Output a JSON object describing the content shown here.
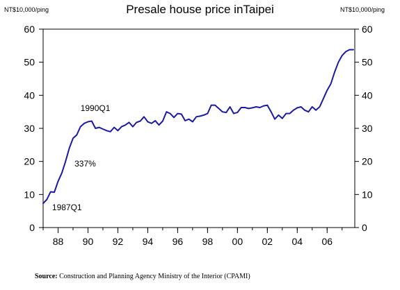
{
  "chart_data": {
    "type": "line",
    "title": "Presale house price inTaipei",
    "unit_left": "NT$10,000/ping",
    "unit_right": "NT$10,000/ping",
    "xlabel": "",
    "ylabel": "",
    "xlim": [
      1987.0,
      2007.85
    ],
    "ylim": [
      0,
      60
    ],
    "y_ticks": [
      0,
      10,
      20,
      30,
      40,
      50,
      60
    ],
    "x_ticks": [
      {
        "value": 1988.0,
        "label": "88"
      },
      {
        "value": 1990.0,
        "label": "90"
      },
      {
        "value": 1992.0,
        "label": "92"
      },
      {
        "value": 1994.0,
        "label": "94"
      },
      {
        "value": 1996.0,
        "label": "96"
      },
      {
        "value": 1998.0,
        "label": "98"
      },
      {
        "value": 2000.0,
        "label": "00"
      },
      {
        "value": 2002.0,
        "label": "02"
      },
      {
        "value": 2004.0,
        "label": "04"
      },
      {
        "value": 2006.0,
        "label": "06"
      }
    ],
    "grid": false,
    "line_color": "#1a1aa6",
    "series": [
      {
        "x": [
          1987.0,
          1987.25,
          1987.5,
          1987.75,
          1988.0,
          1988.25,
          1988.5,
          1988.75,
          1989.0,
          1989.25,
          1989.5,
          1989.75,
          1990.0,
          1990.25,
          1990.5,
          1990.75,
          1991.0,
          1991.25,
          1991.5,
          1991.75,
          1992.0,
          1992.25,
          1992.5,
          1992.75,
          1993.0,
          1993.25,
          1993.5,
          1993.75,
          1994.0,
          1994.25,
          1994.5,
          1994.75,
          1995.0,
          1995.25,
          1995.5,
          1995.75,
          1996.0,
          1996.25,
          1996.5,
          1996.75,
          1997.0,
          1997.25,
          1997.5,
          1997.75,
          1998.0,
          1998.25,
          1998.5,
          1998.75,
          1999.0,
          1999.25,
          1999.5,
          1999.75,
          2000.0,
          2000.25,
          2000.5,
          2000.75,
          2001.0,
          2001.25,
          2001.5,
          2001.75,
          2002.0,
          2002.25,
          2002.5,
          2002.75,
          2003.0,
          2003.25,
          2003.5,
          2003.75,
          2004.0,
          2004.25,
          2004.5,
          2004.75,
          2005.0,
          2005.25,
          2005.5,
          2005.75,
          2006.0,
          2006.25,
          2006.5,
          2006.75,
          2007.0,
          2007.25,
          2007.5,
          2007.75
        ],
        "values": [
          7.3,
          8.5,
          10.8,
          10.7,
          14.0,
          16.5,
          20.0,
          24.0,
          27.0,
          28.0,
          30.5,
          31.5,
          32.0,
          32.2,
          30.0,
          30.3,
          29.8,
          29.3,
          29.0,
          30.3,
          29.3,
          30.5,
          31.0,
          31.8,
          30.5,
          31.8,
          32.2,
          33.5,
          32.0,
          31.5,
          32.3,
          31.0,
          32.2,
          35.0,
          34.5,
          33.3,
          34.5,
          34.3,
          32.3,
          32.8,
          32.0,
          33.5,
          33.7,
          34.0,
          34.5,
          37.0,
          37.0,
          36.0,
          35.0,
          34.8,
          36.5,
          34.5,
          34.8,
          36.3,
          36.3,
          36.0,
          36.2,
          36.5,
          36.3,
          36.8,
          37.0,
          35.0,
          32.8,
          34.0,
          33.0,
          34.5,
          34.5,
          35.5,
          36.2,
          36.5,
          35.5,
          35.0,
          36.5,
          35.5,
          36.5,
          39.0,
          41.5,
          43.5,
          47.0,
          50.0,
          52.0,
          53.2,
          53.8,
          53.8
        ]
      }
    ],
    "annotations": [
      {
        "text": "1990Q1",
        "x": 1989.5,
        "y": 35.2
      },
      {
        "text": "337%",
        "x": 1989.1,
        "y": 18.5
      },
      {
        "text": "1987Q1",
        "x": 1987.6,
        "y": 5.2
      }
    ],
    "source_label": "Source:",
    "source_text": " Construction and Planning Agency Ministry of the Interior (CPAMI)"
  }
}
